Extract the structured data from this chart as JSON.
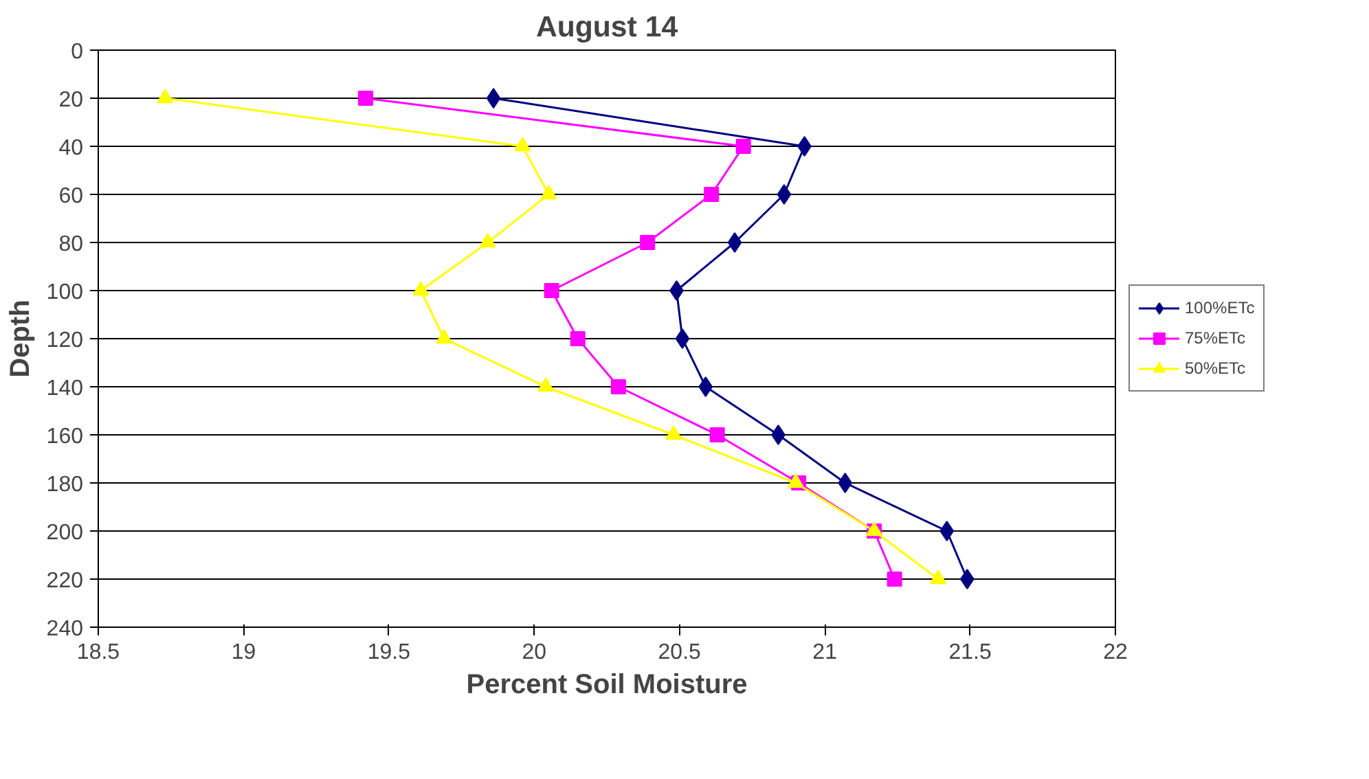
{
  "chart_data": {
    "type": "line",
    "title": "August 14",
    "xlabel": "Percent Soil Moisture",
    "ylabel": "Depth",
    "series": [
      {
        "name": "100%ETc",
        "color": "#000080",
        "marker": "diamond",
        "x": [
          19.86,
          20.93,
          20.86,
          20.69,
          20.49,
          20.51,
          20.59,
          20.84,
          21.07,
          21.42,
          21.49
        ],
        "values": [
          20,
          40,
          60,
          80,
          100,
          120,
          140,
          160,
          180,
          200,
          220
        ]
      },
      {
        "name": "75%ETc",
        "color": "#ff00ff",
        "marker": "square",
        "x": [
          19.42,
          20.72,
          20.61,
          20.39,
          20.06,
          20.15,
          20.29,
          20.63,
          20.91,
          21.17,
          21.24
        ],
        "values": [
          20,
          40,
          60,
          80,
          100,
          120,
          140,
          160,
          180,
          200,
          220
        ]
      },
      {
        "name": "50%ETc",
        "color": "#ffff00",
        "marker": "triangle",
        "x": [
          18.73,
          19.96,
          20.05,
          19.84,
          19.61,
          19.69,
          20.04,
          20.48,
          20.9,
          21.17,
          21.39
        ],
        "values": [
          20,
          40,
          60,
          80,
          100,
          120,
          140,
          160,
          180,
          200,
          220
        ]
      }
    ],
    "xlim": [
      18.5,
      22
    ],
    "xticks": [
      18.5,
      19,
      19.5,
      20,
      20.5,
      21,
      21.5,
      22
    ],
    "ylim": [
      240,
      0
    ],
    "yticks": [
      0,
      20,
      40,
      60,
      80,
      100,
      120,
      140,
      160,
      180,
      200,
      220,
      240
    ],
    "grid": "y",
    "legend": "right"
  }
}
